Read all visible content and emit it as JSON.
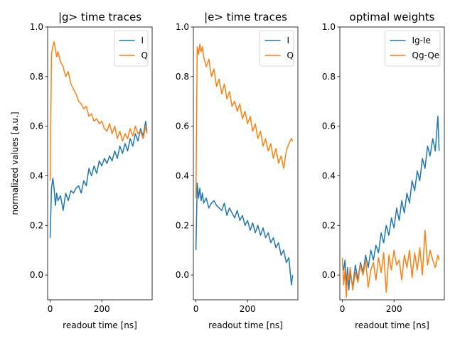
{
  "figure": {
    "ylabel": "normalized values [a.u.]"
  },
  "chart_data": [
    {
      "type": "line",
      "title": "|g> time traces",
      "xlabel": "readout time [ns]",
      "ylabel": "normalized values [a.u.]",
      "xlim": [
        -10,
        395
      ],
      "ylim": [
        -0.1,
        1.0
      ],
      "xticks": [
        0,
        200
      ],
      "yticks": [
        0.0,
        0.2,
        0.4,
        0.6,
        0.8,
        1.0
      ],
      "legend": "upper-right",
      "series": [
        {
          "name": "I",
          "color": "#1f77b4",
          "x": [
            0,
            5,
            10,
            15,
            20,
            25,
            30,
            40,
            50,
            60,
            70,
            80,
            90,
            100,
            110,
            120,
            130,
            140,
            150,
            160,
            170,
            180,
            190,
            200,
            210,
            220,
            230,
            240,
            250,
            260,
            270,
            280,
            290,
            300,
            310,
            320,
            330,
            340,
            350,
            360,
            370,
            375
          ],
          "y": [
            0.15,
            0.35,
            0.39,
            0.35,
            0.28,
            0.33,
            0.3,
            0.32,
            0.26,
            0.33,
            0.3,
            0.34,
            0.33,
            0.35,
            0.36,
            0.33,
            0.38,
            0.36,
            0.43,
            0.4,
            0.44,
            0.41,
            0.46,
            0.44,
            0.47,
            0.45,
            0.48,
            0.46,
            0.5,
            0.47,
            0.52,
            0.49,
            0.53,
            0.5,
            0.55,
            0.52,
            0.57,
            0.54,
            0.59,
            0.56,
            0.62,
            0.58
          ]
        },
        {
          "name": "Q",
          "color": "#ff7f0e",
          "x": [
            0,
            5,
            10,
            15,
            20,
            25,
            30,
            40,
            50,
            60,
            70,
            80,
            90,
            100,
            110,
            120,
            130,
            140,
            150,
            160,
            170,
            180,
            190,
            200,
            210,
            220,
            230,
            240,
            250,
            260,
            270,
            280,
            290,
            300,
            310,
            320,
            330,
            340,
            350,
            360,
            370,
            375
          ],
          "y": [
            0.38,
            0.89,
            0.92,
            0.94,
            0.91,
            0.88,
            0.9,
            0.86,
            0.84,
            0.8,
            0.82,
            0.77,
            0.75,
            0.73,
            0.7,
            0.69,
            0.67,
            0.68,
            0.64,
            0.65,
            0.62,
            0.63,
            0.61,
            0.62,
            0.59,
            0.58,
            0.61,
            0.57,
            0.6,
            0.55,
            0.58,
            0.54,
            0.57,
            0.55,
            0.59,
            0.56,
            0.6,
            0.57,
            0.58,
            0.55,
            0.6,
            0.57
          ]
        }
      ]
    },
    {
      "type": "line",
      "title": "|e> time traces",
      "xlabel": "readout time [ns]",
      "ylabel": "",
      "xlim": [
        -10,
        395
      ],
      "ylim": [
        -0.1,
        1.0
      ],
      "xticks": [
        0,
        200
      ],
      "yticks": [
        0.0,
        0.2,
        0.4,
        0.6,
        0.8,
        1.0
      ],
      "legend": "upper-right",
      "series": [
        {
          "name": "I",
          "color": "#1f77b4",
          "x": [
            0,
            5,
            10,
            15,
            20,
            25,
            30,
            40,
            50,
            60,
            70,
            80,
            90,
            100,
            110,
            120,
            130,
            140,
            150,
            160,
            170,
            180,
            190,
            200,
            210,
            220,
            230,
            240,
            250,
            260,
            270,
            280,
            290,
            300,
            310,
            320,
            330,
            340,
            350,
            360,
            370,
            375
          ],
          "y": [
            0.1,
            0.37,
            0.31,
            0.35,
            0.3,
            0.33,
            0.29,
            0.31,
            0.27,
            0.29,
            0.3,
            0.28,
            0.27,
            0.26,
            0.29,
            0.24,
            0.27,
            0.25,
            0.23,
            0.26,
            0.22,
            0.24,
            0.2,
            0.22,
            0.18,
            0.21,
            0.17,
            0.2,
            0.16,
            0.19,
            0.15,
            0.17,
            0.13,
            0.15,
            0.11,
            0.13,
            0.08,
            0.1,
            0.05,
            0.07,
            -0.04,
            0.0
          ]
        },
        {
          "name": "Q",
          "color": "#ff7f0e",
          "x": [
            0,
            5,
            10,
            15,
            20,
            25,
            30,
            40,
            50,
            60,
            70,
            80,
            90,
            100,
            110,
            120,
            130,
            140,
            150,
            160,
            170,
            180,
            190,
            200,
            210,
            220,
            230,
            240,
            250,
            260,
            270,
            280,
            290,
            300,
            310,
            320,
            330,
            340,
            350,
            360,
            370,
            375
          ],
          "y": [
            0.31,
            0.92,
            0.89,
            0.93,
            0.9,
            0.92,
            0.88,
            0.84,
            0.87,
            0.8,
            0.83,
            0.76,
            0.79,
            0.73,
            0.77,
            0.71,
            0.74,
            0.68,
            0.7,
            0.66,
            0.69,
            0.63,
            0.66,
            0.61,
            0.64,
            0.58,
            0.61,
            0.55,
            0.58,
            0.52,
            0.55,
            0.5,
            0.53,
            0.47,
            0.51,
            0.45,
            0.48,
            0.43,
            0.5,
            0.53,
            0.55,
            0.54
          ]
        }
      ]
    },
    {
      "type": "line",
      "title": "optimal weights",
      "xlabel": "readout time [ns]",
      "ylabel": "",
      "xlim": [
        -10,
        395
      ],
      "ylim": [
        -0.1,
        1.0
      ],
      "xticks": [
        0,
        200
      ],
      "yticks": [
        0.0,
        0.2,
        0.4,
        0.6,
        0.8,
        1.0
      ],
      "legend": "upper-right",
      "series": [
        {
          "name": "Ig-Ie",
          "color": "#1f77b4",
          "x": [
            0,
            5,
            10,
            15,
            20,
            25,
            30,
            40,
            50,
            60,
            70,
            80,
            90,
            100,
            110,
            120,
            130,
            140,
            150,
            160,
            170,
            180,
            190,
            200,
            210,
            220,
            230,
            240,
            250,
            260,
            270,
            280,
            290,
            300,
            310,
            320,
            330,
            340,
            350,
            360,
            370,
            375
          ],
          "y": [
            0.05,
            0.02,
            0.06,
            -0.04,
            0.03,
            -0.06,
            0.01,
            -0.05,
            0.04,
            -0.02,
            0.05,
            0.01,
            0.08,
            0.03,
            0.1,
            0.06,
            0.12,
            0.09,
            0.17,
            0.13,
            0.2,
            0.16,
            0.23,
            0.19,
            0.27,
            0.22,
            0.3,
            0.25,
            0.33,
            0.29,
            0.38,
            0.34,
            0.42,
            0.38,
            0.47,
            0.43,
            0.52,
            0.48,
            0.55,
            0.5,
            0.64,
            0.5
          ]
        },
        {
          "name": "Qg-Qe",
          "color": "#ff7f0e",
          "x": [
            0,
            5,
            10,
            15,
            20,
            25,
            30,
            40,
            50,
            60,
            70,
            80,
            90,
            100,
            110,
            120,
            130,
            140,
            150,
            160,
            170,
            180,
            190,
            200,
            210,
            220,
            230,
            240,
            250,
            260,
            270,
            280,
            290,
            300,
            310,
            320,
            330,
            340,
            350,
            360,
            370,
            375
          ],
          "y": [
            0.07,
            -0.04,
            0.02,
            -0.09,
            0.0,
            -0.02,
            0.03,
            -0.06,
            0.01,
            -0.03,
            0.04,
            0.0,
            0.06,
            -0.05,
            0.02,
            0.05,
            -0.02,
            0.07,
            0.01,
            0.09,
            -0.07,
            0.08,
            0.02,
            0.1,
            0.04,
            0.06,
            -0.02,
            0.08,
            0.03,
            0.1,
            -0.01,
            0.09,
            0.02,
            0.11,
            0.0,
            0.18,
            0.04,
            0.1,
            0.06,
            0.03,
            0.08,
            0.06
          ]
        }
      ]
    }
  ]
}
